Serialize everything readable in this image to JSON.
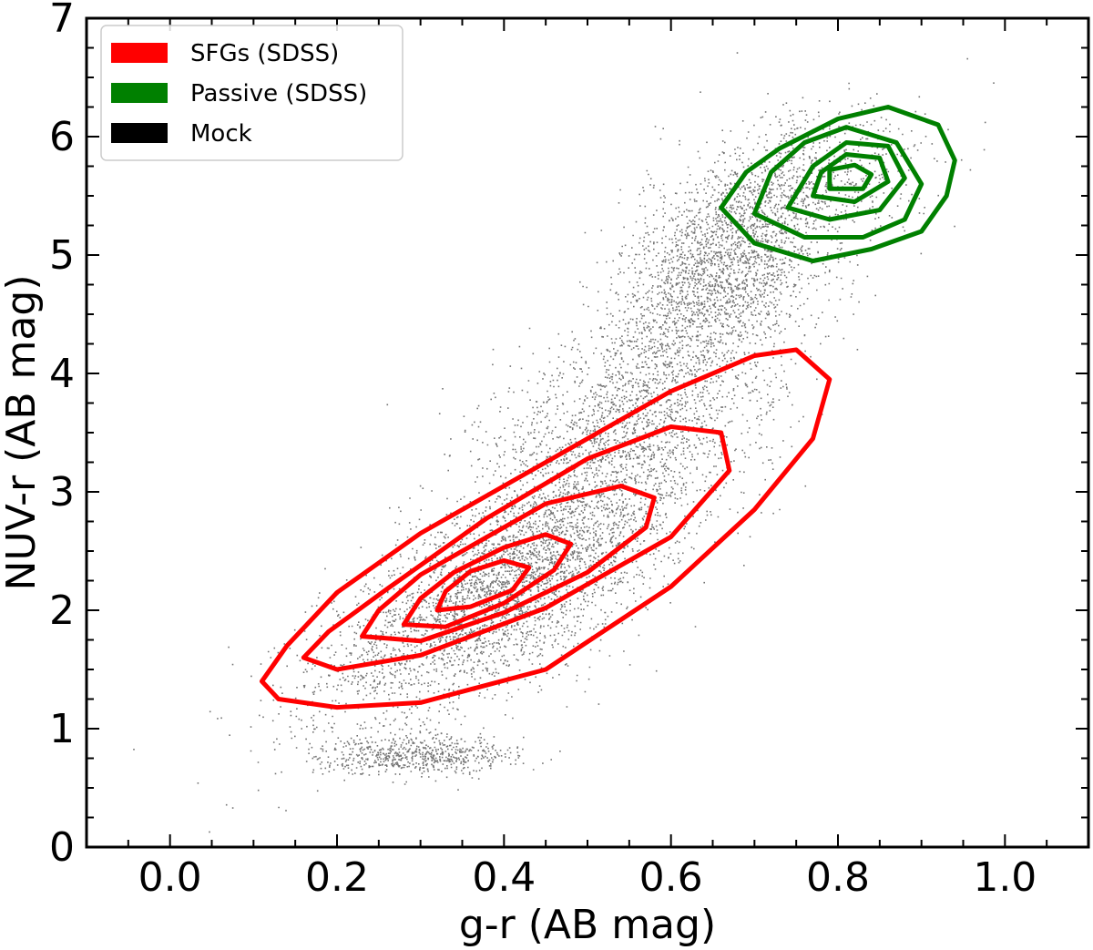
{
  "chart_data": {
    "type": "scatter",
    "title": "",
    "xlabel": "g-r (AB mag)",
    "ylabel": "NUV-r (AB mag)",
    "xlim": [
      -0.1,
      1.1
    ],
    "ylim": [
      0,
      7
    ],
    "x_ticks": [
      0.0,
      0.2,
      0.4,
      0.6,
      0.8,
      1.0
    ],
    "x_tick_labels": [
      "0.0",
      "0.2",
      "0.4",
      "0.6",
      "0.8",
      "1.0"
    ],
    "y_ticks": [
      0,
      1,
      2,
      3,
      4,
      5,
      6,
      7
    ],
    "y_tick_labels": [
      "0",
      "1",
      "2",
      "3",
      "4",
      "5",
      "6",
      "7"
    ],
    "grid": false,
    "legend_position": "top-left",
    "series": [
      {
        "name": "SFGs (SDSS)",
        "kind": "contour",
        "color": "#ff0000",
        "levels": [
          {
            "x": [
              0.11,
              0.13,
              0.2,
              0.3,
              0.45,
              0.6,
              0.7,
              0.77,
              0.79,
              0.75,
              0.7,
              0.6,
              0.45,
              0.3,
              0.2,
              0.14,
              0.11
            ],
            "y": [
              1.4,
              1.25,
              1.18,
              1.22,
              1.5,
              2.2,
              2.85,
              3.45,
              3.95,
              4.2,
              4.15,
              3.85,
              3.25,
              2.65,
              2.15,
              1.7,
              1.4
            ]
          },
          {
            "x": [
              0.16,
              0.2,
              0.3,
              0.45,
              0.6,
              0.67,
              0.66,
              0.6,
              0.5,
              0.38,
              0.26,
              0.19,
              0.16
            ],
            "y": [
              1.6,
              1.5,
              1.62,
              2.02,
              2.62,
              3.18,
              3.5,
              3.55,
              3.28,
              2.78,
              2.18,
              1.82,
              1.6
            ]
          },
          {
            "x": [
              0.23,
              0.3,
              0.4,
              0.5,
              0.57,
              0.58,
              0.54,
              0.45,
              0.37,
              0.3,
              0.25,
              0.23
            ],
            "y": [
              1.78,
              1.74,
              1.98,
              2.32,
              2.7,
              2.95,
              3.05,
              2.9,
              2.58,
              2.3,
              2.0,
              1.78
            ]
          },
          {
            "x": [
              0.28,
              0.33,
              0.4,
              0.46,
              0.48,
              0.45,
              0.4,
              0.34,
              0.3,
              0.28
            ],
            "y": [
              1.88,
              1.86,
              2.06,
              2.34,
              2.56,
              2.64,
              2.53,
              2.32,
              2.1,
              1.88
            ]
          },
          {
            "x": [
              0.32,
              0.36,
              0.41,
              0.43,
              0.4,
              0.36,
              0.33,
              0.32
            ],
            "y": [
              2.0,
              2.03,
              2.17,
              2.36,
              2.42,
              2.33,
              2.16,
              2.0
            ]
          }
        ]
      },
      {
        "name": "Passive (SDSS)",
        "kind": "contour",
        "color": "#008000",
        "levels": [
          {
            "x": [
              0.66,
              0.7,
              0.77,
              0.84,
              0.9,
              0.93,
              0.94,
              0.92,
              0.86,
              0.8,
              0.73,
              0.69,
              0.66
            ],
            "y": [
              5.4,
              5.1,
              4.95,
              5.05,
              5.2,
              5.5,
              5.8,
              6.1,
              6.25,
              6.15,
              5.9,
              5.7,
              5.4
            ]
          },
          {
            "x": [
              0.7,
              0.76,
              0.83,
              0.88,
              0.9,
              0.87,
              0.81,
              0.76,
              0.72,
              0.7
            ],
            "y": [
              5.35,
              5.15,
              5.15,
              5.3,
              5.6,
              5.95,
              6.08,
              5.95,
              5.7,
              5.35
            ]
          },
          {
            "x": [
              0.74,
              0.79,
              0.85,
              0.88,
              0.86,
              0.81,
              0.77,
              0.74
            ],
            "y": [
              5.4,
              5.3,
              5.38,
              5.65,
              5.92,
              5.95,
              5.75,
              5.4
            ]
          },
          {
            "x": [
              0.77,
              0.82,
              0.86,
              0.85,
              0.81,
              0.78,
              0.77
            ],
            "y": [
              5.5,
              5.45,
              5.62,
              5.82,
              5.85,
              5.7,
              5.5
            ]
          },
          {
            "x": [
              0.79,
              0.83,
              0.84,
              0.82,
              0.79,
              0.79
            ],
            "y": [
              5.56,
              5.56,
              5.68,
              5.76,
              5.72,
              5.56
            ]
          }
        ]
      },
      {
        "name": "Mock",
        "kind": "scatter-density",
        "color": "#000000",
        "components": [
          {
            "cx": 0.4,
            "cy": 2.2,
            "sx": 0.11,
            "sy": 0.55,
            "rho": 0.7,
            "weight": 0.4
          },
          {
            "cx": 0.55,
            "cy": 3.6,
            "sx": 0.09,
            "sy": 0.55,
            "rho": 0.5,
            "weight": 0.22
          },
          {
            "cx": 0.66,
            "cy": 4.9,
            "sx": 0.06,
            "sy": 0.45,
            "rho": 0.4,
            "weight": 0.22
          },
          {
            "cx": 0.76,
            "cy": 5.55,
            "sx": 0.07,
            "sy": 0.35,
            "rho": 0.3,
            "weight": 0.09
          },
          {
            "cx": 0.3,
            "cy": 0.78,
            "sx": 0.06,
            "sy": 0.08,
            "rho": 0.0,
            "weight": 0.07
          }
        ]
      }
    ]
  }
}
